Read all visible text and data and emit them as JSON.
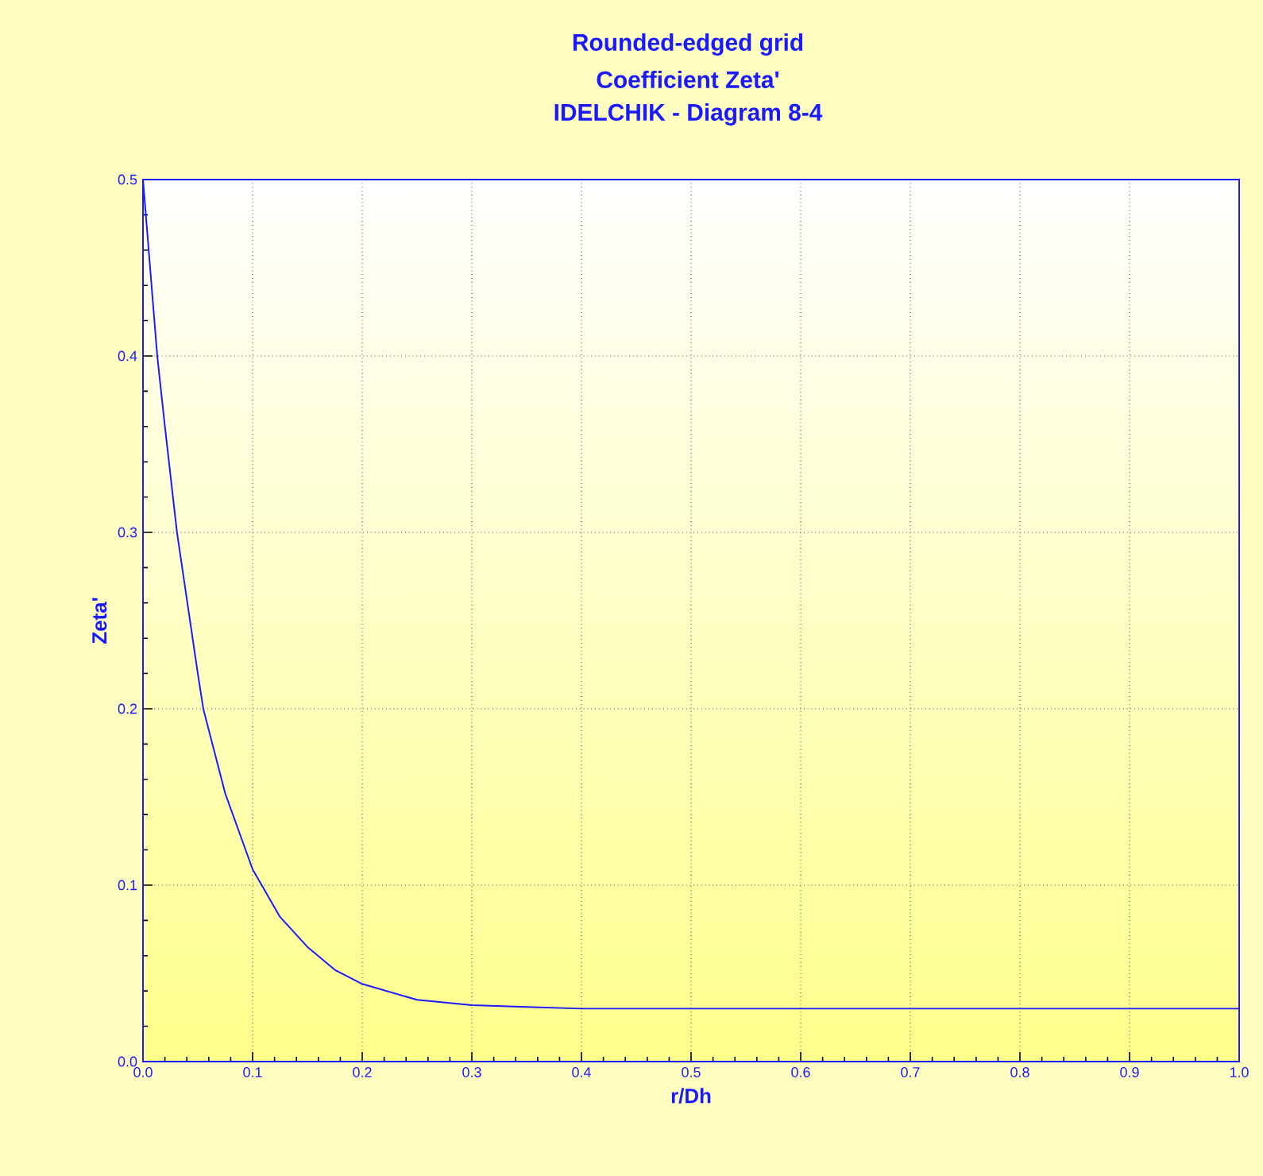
{
  "chart_data": {
    "type": "line",
    "title": "Rounded-edged grid",
    "subtitle": "Coefficient Zeta'",
    "annotations": [
      "IDELCHIK - Diagram 8-4"
    ],
    "xlabel": "r/Dh",
    "ylabel": "Zeta'",
    "x": [
      0,
      0.013,
      0.02,
      0.031,
      0.05,
      0.055,
      0.075,
      0.1,
      0.125,
      0.15,
      0.175,
      0.2,
      0.25,
      0.3,
      0.35,
      0.4,
      0.5,
      0.6,
      0.7,
      0.8,
      0.9,
      1.0
    ],
    "values": [
      0.5,
      0.4,
      0.36,
      0.3,
      0.22,
      0.2,
      0.152,
      0.109,
      0.082,
      0.065,
      0.052,
      0.044,
      0.035,
      0.032,
      0.031,
      0.03,
      0.03,
      0.03,
      0.03,
      0.03,
      0.03,
      0.03
    ],
    "color": "#1a1aff",
    "xlim": [
      0,
      1.0
    ],
    "ylim": [
      0,
      0.5
    ],
    "xticks": [
      {
        "value": 0,
        "label": "0.0"
      },
      0.1,
      0.2,
      0.3,
      0.4,
      0.5,
      0.6,
      0.7,
      0.8,
      0.9,
      {
        "value": 1.0,
        "label": "1.0"
      }
    ],
    "yticks": [
      {
        "value": 0,
        "label": "0.0"
      },
      0.1,
      0.2,
      0.3,
      0.4,
      0.5
    ],
    "grid": true
  }
}
